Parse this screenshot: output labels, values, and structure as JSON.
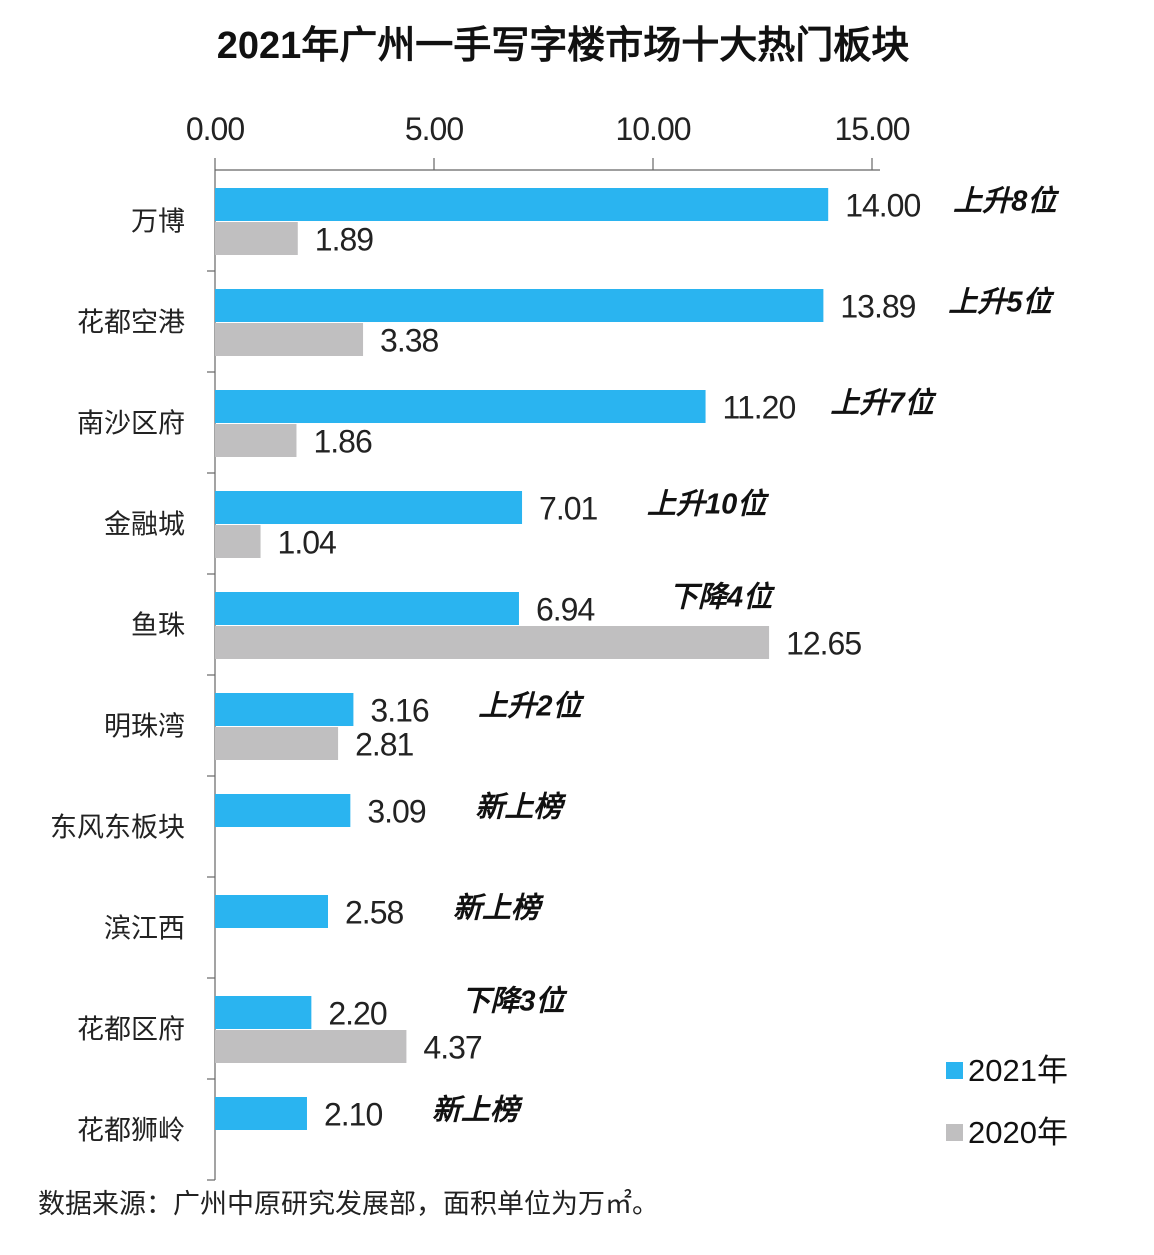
{
  "chart_data": {
    "type": "bar",
    "orientation": "horizontal",
    "title": "2021年广州一手写字楼市场十大热门板块",
    "categories": [
      "万博",
      "花都空港",
      "南沙区府",
      "金融城",
      "鱼珠",
      "明珠湾",
      "东风东板块",
      "滨江西",
      "花都区府",
      "花都狮岭"
    ],
    "series": [
      {
        "name": "2021年",
        "color": "#2ab4f0",
        "values": [
          14.0,
          13.89,
          11.2,
          7.01,
          6.94,
          3.16,
          3.09,
          2.58,
          2.2,
          2.1
        ]
      },
      {
        "name": "2020年",
        "color": "#c0bfc0",
        "values": [
          1.89,
          3.38,
          1.86,
          1.04,
          12.65,
          2.81,
          null,
          null,
          4.37,
          null
        ]
      }
    ],
    "annotations": [
      "上升8位",
      "上升5位",
      "上升7位",
      "上升10位",
      "下降4位",
      "上升2位",
      "新上榜",
      "新上榜",
      "下降3位",
      "新上榜"
    ],
    "xlim": [
      0,
      15
    ],
    "x_ticks": [
      "0.00",
      "5.00",
      "10.00",
      "15.00"
    ],
    "x_axis_position": "top",
    "grid": false,
    "legend_position": "bottom-right",
    "source": "数据来源：广州中原研究发展部，面积单位为万㎡。"
  }
}
